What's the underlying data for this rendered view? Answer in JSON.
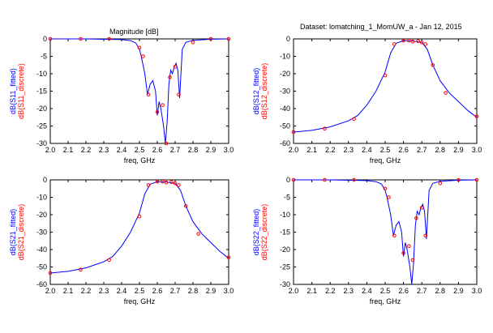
{
  "page": {
    "title": "Magnitude [dB]",
    "dataset_label": "Dataset: lomatching_1_MomUW_a - Jan 12, 2015"
  },
  "colors": {
    "fitted": "#0000ff",
    "discrete": "#ff0000",
    "axis": "#000000"
  },
  "chart_data": [
    {
      "id": "s11",
      "type": "line",
      "xlabel": "freq, GHz",
      "ylabel_fitted": "dB(S11_fitted)",
      "ylabel_discrete": "dB(S11_discrete)",
      "xlim": [
        2.0,
        3.0
      ],
      "ylim": [
        -30,
        0
      ],
      "xticks": [
        2.0,
        2.1,
        2.2,
        2.3,
        2.4,
        2.5,
        2.6,
        2.7,
        2.8,
        2.9,
        3.0
      ],
      "yticks": [
        0,
        -5,
        -10,
        -15,
        -20,
        -25,
        -30
      ],
      "series": [
        {
          "name": "dB(S11_fitted)",
          "x": [
            2.0,
            2.2,
            2.4,
            2.45,
            2.48,
            2.5,
            2.51,
            2.53,
            2.545,
            2.56,
            2.575,
            2.59,
            2.6,
            2.61,
            2.62,
            2.635,
            2.645,
            2.655,
            2.665,
            2.675,
            2.685,
            2.695,
            2.705,
            2.715,
            2.725,
            2.74,
            2.76,
            2.8,
            2.9,
            3.0
          ],
          "y": [
            0,
            0,
            -0.2,
            -0.5,
            -1.2,
            -3,
            -5,
            -10,
            -16,
            -13,
            -12,
            -15,
            -22,
            -18,
            -20,
            -25,
            -30,
            -24,
            -13,
            -9,
            -10,
            -8,
            -7,
            -9,
            -17,
            -3,
            -1,
            -0.4,
            -0.1,
            0
          ]
        },
        {
          "name": "dB(S11_discrete)",
          "x": [
            2.0,
            2.17,
            2.33,
            2.5,
            2.52,
            2.55,
            2.6,
            2.63,
            2.65,
            2.67,
            2.7,
            2.72,
            2.8,
            2.9,
            3.0
          ],
          "y": [
            0,
            0,
            0,
            -2.5,
            -5,
            -16,
            -21,
            -19,
            -30,
            -11,
            -8,
            -16,
            -1,
            0,
            0
          ]
        }
      ]
    },
    {
      "id": "s12",
      "type": "line",
      "xlabel": "freq, GHz",
      "ylabel_fitted": "dB(S12_fitted)",
      "ylabel_discrete": "dB(S12_discrete)",
      "xlim": [
        2.0,
        3.0
      ],
      "ylim": [
        -60,
        0
      ],
      "xticks": [
        2.0,
        2.1,
        2.2,
        2.3,
        2.4,
        2.5,
        2.6,
        2.7,
        2.8,
        2.9,
        3.0
      ],
      "yticks": [
        0,
        -10,
        -20,
        -30,
        -40,
        -50,
        -60
      ],
      "series": [
        {
          "name": "dB(S12_fitted)",
          "x": [
            2.0,
            2.1,
            2.2,
            2.3,
            2.35,
            2.4,
            2.45,
            2.5,
            2.53,
            2.56,
            2.6,
            2.65,
            2.7,
            2.73,
            2.76,
            2.8,
            2.85,
            2.9,
            2.95,
            3.0
          ],
          "y": [
            -53.5,
            -52.5,
            -50.5,
            -47,
            -44,
            -38,
            -30,
            -19,
            -8,
            -2.5,
            -1,
            -1.2,
            -2,
            -6,
            -15,
            -24,
            -31,
            -36,
            -41,
            -45
          ]
        },
        {
          "name": "dB(S12_discrete)",
          "x": [
            2.0,
            2.17,
            2.33,
            2.5,
            2.55,
            2.6,
            2.63,
            2.65,
            2.68,
            2.7,
            2.72,
            2.76,
            2.83,
            3.0
          ],
          "y": [
            -53.5,
            -51.5,
            -46,
            -21,
            -3,
            -1,
            -1,
            -1.5,
            -1.3,
            -2,
            -3,
            -15,
            -31,
            -44.5
          ]
        }
      ]
    },
    {
      "id": "s21",
      "type": "line",
      "xlabel": "freq, GHz",
      "ylabel_fitted": "dB(S21_fitted)",
      "ylabel_discrete": "dB(S21_discrete)",
      "xlim": [
        2.0,
        3.0
      ],
      "ylim": [
        -60,
        0
      ],
      "xticks": [
        2.0,
        2.1,
        2.2,
        2.3,
        2.4,
        2.5,
        2.6,
        2.7,
        2.8,
        2.9,
        3.0
      ],
      "yticks": [
        0,
        -10,
        -20,
        -30,
        -40,
        -50,
        -60
      ],
      "series": [
        {
          "name": "dB(S21_fitted)",
          "x": [
            2.0,
            2.1,
            2.2,
            2.3,
            2.35,
            2.4,
            2.45,
            2.5,
            2.53,
            2.56,
            2.6,
            2.65,
            2.7,
            2.73,
            2.76,
            2.8,
            2.85,
            2.9,
            2.95,
            3.0
          ],
          "y": [
            -53.5,
            -52.5,
            -50.5,
            -47,
            -44,
            -38,
            -30,
            -19,
            -8,
            -2.5,
            -1,
            -1.2,
            -2,
            -6,
            -15,
            -24,
            -31,
            -36,
            -41,
            -45
          ]
        },
        {
          "name": "dB(S21_discrete)",
          "x": [
            2.0,
            2.17,
            2.33,
            2.5,
            2.55,
            2.6,
            2.63,
            2.65,
            2.68,
            2.7,
            2.72,
            2.76,
            2.83,
            3.0
          ],
          "y": [
            -53.5,
            -51.5,
            -46,
            -21,
            -3,
            -1,
            -1,
            -1.5,
            -1.3,
            -2,
            -3,
            -15,
            -31,
            -44.5
          ]
        }
      ]
    },
    {
      "id": "s22",
      "type": "line",
      "xlabel": "freq, GHz",
      "ylabel_fitted": "dB(S22_fitted)",
      "ylabel_discrete": "dB(S22_discrete)",
      "xlim": [
        2.0,
        3.0
      ],
      "ylim": [
        -30,
        0
      ],
      "xticks": [
        2.0,
        2.1,
        2.2,
        2.3,
        2.4,
        2.5,
        2.6,
        2.7,
        2.8,
        2.9,
        3.0
      ],
      "yticks": [
        0,
        -5,
        -10,
        -15,
        -20,
        -25,
        -30
      ],
      "series": [
        {
          "name": "dB(S22_fitted)",
          "x": [
            2.0,
            2.2,
            2.4,
            2.45,
            2.48,
            2.5,
            2.51,
            2.53,
            2.545,
            2.56,
            2.575,
            2.59,
            2.6,
            2.61,
            2.62,
            2.635,
            2.645,
            2.655,
            2.665,
            2.675,
            2.685,
            2.695,
            2.705,
            2.715,
            2.725,
            2.74,
            2.76,
            2.8,
            2.9,
            3.0
          ],
          "y": [
            0,
            0,
            -0.2,
            -0.5,
            -1.2,
            -3,
            -5,
            -10,
            -16,
            -13,
            -12,
            -15,
            -22,
            -18,
            -20,
            -25,
            -30,
            -24,
            -13,
            -9,
            -10,
            -8,
            -7,
            -9,
            -17,
            -3,
            -1,
            -0.4,
            -0.1,
            0
          ]
        },
        {
          "name": "dB(S22_discrete)",
          "x": [
            2.0,
            2.17,
            2.33,
            2.5,
            2.52,
            2.55,
            2.6,
            2.63,
            2.65,
            2.67,
            2.7,
            2.72,
            2.8,
            2.9,
            3.0
          ],
          "y": [
            0,
            0,
            0,
            -2.5,
            -5,
            -16,
            -21,
            -19,
            -23,
            -11,
            -8,
            -16,
            -1,
            0,
            0
          ]
        }
      ]
    }
  ]
}
